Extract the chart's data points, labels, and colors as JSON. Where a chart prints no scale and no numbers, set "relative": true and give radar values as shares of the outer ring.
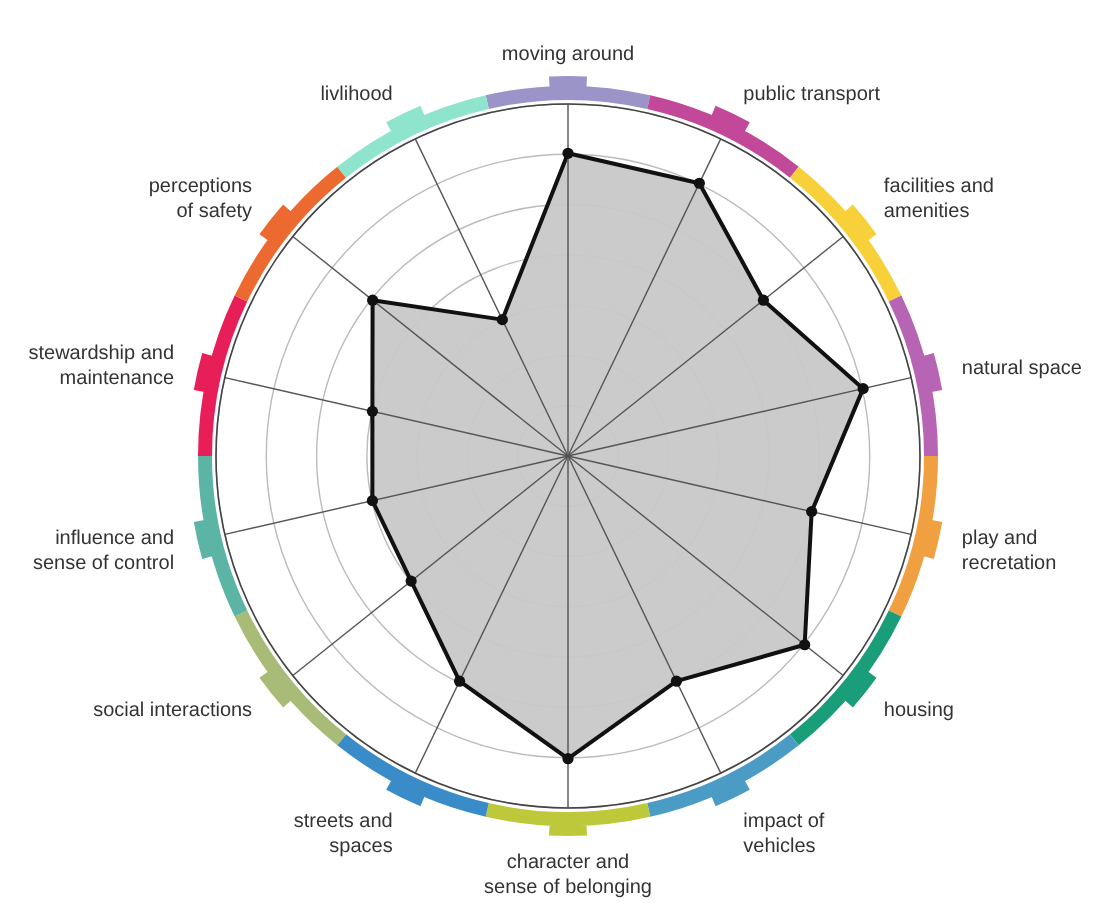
{
  "chart_data": {
    "type": "radar",
    "relative": true,
    "grid": true,
    "marker": "circle",
    "categories": [
      "moving around",
      "public transport",
      "facilities and\namenities",
      "natural space",
      "play and\nrecretation",
      "housing",
      "impact of\nvehicles",
      "character and\nsense of belonging",
      "streets and\nspaces",
      "social interactions",
      "influence and\nsense of control",
      "stewardship and\nmaintenance",
      "perceptions\nof safety",
      "livlihood"
    ],
    "colors": [
      "#9b94c8",
      "#c2489a",
      "#f8d03a",
      "#b864b4",
      "#f0a040",
      "#1a9e7a",
      "#4a9cc4",
      "#bdc83a",
      "#3a8cc8",
      "#a8bc78",
      "#5cb4a4",
      "#e81e58",
      "#ec6a30",
      "#8ee4cc"
    ],
    "series": [
      {
        "color": "#c8c8c8",
        "values": [
          0.86,
          0.86,
          0.71,
          0.86,
          0.71,
          0.86,
          0.71,
          0.86,
          0.71,
          0.57,
          0.57,
          0.57,
          0.71,
          0.43
        ]
      }
    ]
  }
}
